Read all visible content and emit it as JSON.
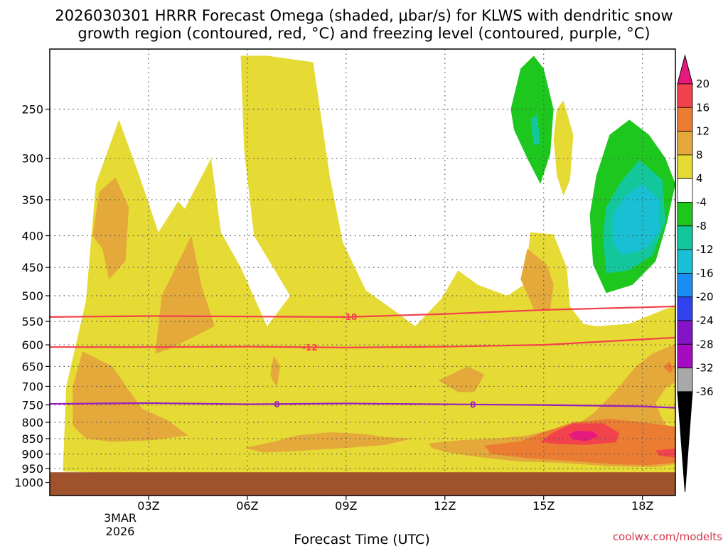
{
  "chart_data": {
    "type": "heatmap",
    "title_line1": "2026030301 HRRR Forecast Omega (shaded, μbar/s) for KLWS with dendritic snow",
    "title_line2": "growth region (contoured, red, °C) and freezing level (contoured, purple, °C)",
    "xlabel": "Forecast Time (UTC)",
    "ylabel": "",
    "x_ticks": [
      "03Z",
      "06Z",
      "09Z",
      "12Z",
      "15Z",
      "18Z"
    ],
    "x_tick_hours": [
      3,
      6,
      9,
      12,
      15,
      18
    ],
    "x_sublabel": [
      "3MAR",
      "2026"
    ],
    "xlim": [
      0,
      19
    ],
    "y_ticks": [
      250,
      300,
      350,
      400,
      450,
      500,
      550,
      600,
      650,
      700,
      750,
      800,
      850,
      900,
      950,
      1000
    ],
    "ylim": [
      1050,
      200
    ],
    "surface_pressure": 963,
    "colorbar": {
      "labels": [
        "20",
        "16",
        "12",
        "8",
        "4",
        "-4",
        "-8",
        "-12",
        "-16",
        "-20",
        "-24",
        "-28",
        "-32",
        "-36"
      ],
      "levels": [
        20,
        16,
        12,
        8,
        4,
        -4,
        -8,
        -12,
        -16,
        -20,
        -24,
        -28,
        -32,
        -36
      ],
      "colors": [
        "#e8197e",
        "#f2424b",
        "#eb7d33",
        "#e4a93a",
        "#e6da35",
        "#ffffff",
        "#1dc71d",
        "#13c79d",
        "#19bfd4",
        "#1a8ef0",
        "#3141ee",
        "#8313c5",
        "#a50cc0",
        "#a8a8a8",
        "#000000"
      ],
      "top_arrow_color": "#e8197e",
      "bottom_arrow_color": "#000000"
    },
    "contours": [
      {
        "name": "dendritic-top",
        "value": -18,
        "label": "-18",
        "color": "#f2424b",
        "points": [
          [
            0,
            541
          ],
          [
            3,
            539
          ],
          [
            6,
            540
          ],
          [
            9,
            541
          ],
          [
            12,
            535
          ],
          [
            15,
            527
          ],
          [
            18,
            522
          ],
          [
            19,
            520
          ]
        ],
        "label_hour": 9.1
      },
      {
        "name": "dendritic-bottom",
        "value": -12,
        "label": "-12",
        "color": "#f2424b",
        "points": [
          [
            0,
            605
          ],
          [
            3,
            605
          ],
          [
            6,
            604
          ],
          [
            9,
            606
          ],
          [
            12,
            604
          ],
          [
            15,
            600
          ],
          [
            18,
            588
          ],
          [
            19,
            584
          ]
        ],
        "label_hour": 7.9
      },
      {
        "name": "freezing-level",
        "value": 0,
        "label": "0",
        "color": "#9a1fc0",
        "points": [
          [
            0,
            747
          ],
          [
            3,
            745
          ],
          [
            6,
            748
          ],
          [
            9,
            746
          ],
          [
            12,
            748
          ],
          [
            15,
            750
          ],
          [
            18,
            754
          ],
          [
            19,
            758
          ]
        ],
        "label_hour": 6.9
      },
      {
        "name": "freezing-level",
        "value": 0,
        "label": "0",
        "color": "#9a1fc0",
        "points": [],
        "label_hour": 12.85
      }
    ],
    "regions": [
      {
        "level": 4,
        "color": "#e6da35",
        "name": "omega-4-main",
        "points": [
          [
            0.4,
            955
          ],
          [
            0.5,
            700
          ],
          [
            1.1,
            510
          ],
          [
            1.4,
            330
          ],
          [
            2.1,
            260
          ],
          [
            2.7,
            318
          ],
          [
            3.3,
            395
          ],
          [
            3.9,
            352
          ],
          [
            4.1,
            362
          ],
          [
            4.9,
            300
          ],
          [
            5.2,
            395
          ],
          [
            5.8,
            450
          ],
          [
            6.6,
            560
          ],
          [
            7.3,
            500
          ],
          [
            6.2,
            400
          ],
          [
            5.9,
            290
          ],
          [
            5.8,
            205
          ],
          [
            6.6,
            205
          ],
          [
            8.0,
            210
          ],
          [
            8.5,
            320
          ],
          [
            8.9,
            410
          ],
          [
            9.6,
            490
          ],
          [
            10.5,
            530
          ],
          [
            11.1,
            560
          ],
          [
            11.9,
            505
          ],
          [
            12.4,
            455
          ],
          [
            13.0,
            480
          ],
          [
            13.9,
            500
          ],
          [
            14.4,
            480
          ],
          [
            14.6,
            395
          ],
          [
            15.3,
            398
          ],
          [
            15.7,
            450
          ],
          [
            15.8,
            520
          ],
          [
            16.2,
            555
          ],
          [
            16.6,
            560
          ],
          [
            17.6,
            555
          ],
          [
            18.7,
            525
          ],
          [
            19,
            520
          ],
          [
            19,
            965
          ],
          [
            14,
            967
          ],
          [
            10,
            970
          ],
          [
            6,
            969
          ],
          [
            2,
            966
          ],
          [
            0.4,
            960
          ]
        ]
      },
      {
        "level": 4,
        "color": "#e6da35",
        "name": "omega-4-narrow",
        "points": [
          [
            15.4,
            250
          ],
          [
            15.6,
            242
          ],
          [
            15.9,
            275
          ],
          [
            15.8,
            325
          ],
          [
            15.6,
            345
          ],
          [
            15.4,
            320
          ],
          [
            15.3,
            280
          ]
        ]
      },
      {
        "level": 8,
        "color": "#e4a93a",
        "name": "omega-8-column",
        "points": [
          [
            1.3,
            400
          ],
          [
            1.5,
            340
          ],
          [
            2.0,
            322
          ],
          [
            2.4,
            360
          ],
          [
            2.3,
            440
          ],
          [
            1.8,
            470
          ],
          [
            1.6,
            420
          ]
        ]
      },
      {
        "level": 8,
        "color": "#e4a93a",
        "name": "omega-8-column",
        "points": [
          [
            3.2,
            620
          ],
          [
            3.4,
            500
          ],
          [
            4.3,
            400
          ],
          [
            4.6,
            480
          ],
          [
            5.0,
            560
          ],
          [
            4.3,
            585
          ],
          [
            3.6,
            610
          ]
        ]
      },
      {
        "level": 8,
        "color": "#e4a93a",
        "name": "omega-8-low",
        "points": [
          [
            0.7,
            700
          ],
          [
            1.0,
            615
          ],
          [
            1.9,
            650
          ],
          [
            2.4,
            710
          ],
          [
            2.8,
            760
          ],
          [
            3.6,
            795
          ],
          [
            4.2,
            840
          ],
          [
            3.1,
            855
          ],
          [
            1.9,
            860
          ],
          [
            1.1,
            850
          ],
          [
            0.7,
            810
          ]
        ]
      },
      {
        "level": 8,
        "color": "#e4a93a",
        "name": "omega-8-low",
        "points": [
          [
            5.9,
            880
          ],
          [
            6.8,
            860
          ],
          [
            7.5,
            840
          ],
          [
            8.5,
            830
          ],
          [
            9.5,
            835
          ],
          [
            10.2,
            845
          ],
          [
            11.0,
            850
          ],
          [
            10.2,
            870
          ],
          [
            9.0,
            880
          ],
          [
            7.5,
            890
          ],
          [
            6.5,
            895
          ]
        ]
      },
      {
        "level": 8,
        "color": "#e4a93a",
        "name": "omega-8-low",
        "points": [
          [
            6.7,
            670
          ],
          [
            6.8,
            625
          ],
          [
            7.0,
            650
          ],
          [
            6.9,
            700
          ],
          [
            6.8,
            690
          ]
        ]
      },
      {
        "level": 8,
        "color": "#e4a93a",
        "name": "omega-8-low",
        "points": [
          [
            11.8,
            685
          ],
          [
            12.7,
            650
          ],
          [
            13.2,
            670
          ],
          [
            12.9,
            715
          ],
          [
            12.4,
            715
          ]
        ]
      },
      {
        "level": 8,
        "color": "#e4a93a",
        "name": "omega-8-upper",
        "points": [
          [
            14.3,
            470
          ],
          [
            14.5,
            420
          ],
          [
            15.1,
            445
          ],
          [
            15.3,
            480
          ],
          [
            15.2,
            525
          ],
          [
            14.7,
            525
          ]
        ]
      },
      {
        "level": 8,
        "color": "#e4a93a",
        "name": "omega-8-right",
        "points": [
          [
            11.5,
            865
          ],
          [
            12.5,
            855
          ],
          [
            13.5,
            850
          ],
          [
            14.5,
            840
          ],
          [
            15.3,
            820
          ],
          [
            16.1,
            800
          ],
          [
            16.5,
            775
          ],
          [
            17.2,
            710
          ],
          [
            17.8,
            650
          ],
          [
            18.3,
            620
          ],
          [
            19,
            598
          ],
          [
            19,
            690
          ],
          [
            18.7,
            705
          ],
          [
            18.4,
            745
          ],
          [
            18.6,
            790
          ],
          [
            19,
            850
          ],
          [
            19,
            935
          ],
          [
            18.3,
            945
          ],
          [
            17.0,
            942
          ],
          [
            15.5,
            930
          ],
          [
            14.2,
            925
          ],
          [
            13.0,
            910
          ],
          [
            12.1,
            895
          ],
          [
            11.6,
            880
          ]
        ]
      },
      {
        "level": 12,
        "color": "#eb7d33",
        "name": "omega-12-right",
        "points": [
          [
            13.2,
            872
          ],
          [
            14.3,
            858
          ],
          [
            15.0,
            830
          ],
          [
            15.9,
            800
          ],
          [
            17.0,
            790
          ],
          [
            18.0,
            800
          ],
          [
            19,
            813
          ],
          [
            19,
            930
          ],
          [
            18.2,
            938
          ],
          [
            17.2,
            935
          ],
          [
            16.0,
            925
          ],
          [
            14.6,
            915
          ],
          [
            13.4,
            900
          ]
        ]
      },
      {
        "level": 12,
        "color": "#eb7d33",
        "name": "omega-12-small",
        "points": [
          [
            18.8,
            638
          ],
          [
            18.95,
            652
          ],
          [
            18.85,
            668
          ],
          [
            18.65,
            652
          ]
        ]
      },
      {
        "level": 16,
        "color": "#f2424b",
        "name": "omega-16-core",
        "points": [
          [
            14.9,
            860
          ],
          [
            15.3,
            830
          ],
          [
            15.9,
            803
          ],
          [
            16.8,
            803
          ],
          [
            17.3,
            832
          ],
          [
            17.2,
            862
          ],
          [
            16.3,
            870
          ],
          [
            15.4,
            867
          ]
        ]
      },
      {
        "level": 16,
        "color": "#f2424b",
        "name": "omega-16-edge",
        "points": [
          [
            18.4,
            888
          ],
          [
            19,
            882
          ],
          [
            19,
            912
          ],
          [
            18.5,
            905
          ]
        ]
      },
      {
        "level": 20,
        "color": "#e8197e",
        "name": "omega-20-peak",
        "points": [
          [
            15.75,
            838
          ],
          [
            16.0,
            825
          ],
          [
            16.5,
            828
          ],
          [
            16.65,
            842
          ],
          [
            16.3,
            858
          ],
          [
            15.9,
            853
          ]
        ]
      },
      {
        "level": -4,
        "color": "#ffffff",
        "name": "omega-neg4",
        "points": [
          [
            16.9,
            270
          ],
          [
            17.6,
            242
          ],
          [
            18.3,
            258
          ],
          [
            18.8,
            290
          ],
          [
            19,
            320
          ],
          [
            18.8,
            380
          ],
          [
            18.5,
            440
          ],
          [
            17.7,
            495
          ],
          [
            16.9,
            510
          ],
          [
            16.1,
            460
          ],
          [
            16.1,
            390
          ],
          [
            16.4,
            330
          ]
        ]
      },
      {
        "level": -8,
        "color": "#1dc71d",
        "name": "omega-neg8",
        "points": [
          [
            17.0,
            275
          ],
          [
            17.6,
            260
          ],
          [
            18.2,
            275
          ],
          [
            18.7,
            300
          ],
          [
            19,
            330
          ],
          [
            18.75,
            380
          ],
          [
            18.4,
            440
          ],
          [
            17.7,
            480
          ],
          [
            16.9,
            495
          ],
          [
            16.5,
            445
          ],
          [
            16.4,
            370
          ],
          [
            16.6,
            320
          ]
        ]
      },
      {
        "level": -8,
        "color": "#1dc71d",
        "name": "omega-neg8-upper",
        "points": [
          [
            14.0,
            250
          ],
          [
            14.3,
            215
          ],
          [
            14.7,
            205
          ],
          [
            15.0,
            215
          ],
          [
            15.3,
            250
          ],
          [
            15.2,
            295
          ],
          [
            14.9,
            330
          ],
          [
            14.5,
            300
          ],
          [
            14.1,
            270
          ]
        ]
      },
      {
        "level": -12,
        "color": "#13c79d",
        "name": "omega-neg12",
        "points": [
          [
            17.3,
            330
          ],
          [
            17.9,
            302
          ],
          [
            18.6,
            325
          ],
          [
            18.7,
            380
          ],
          [
            18.3,
            430
          ],
          [
            17.6,
            455
          ],
          [
            16.9,
            460
          ],
          [
            16.8,
            400
          ],
          [
            16.9,
            360
          ]
        ]
      },
      {
        "level": -12,
        "color": "#13c79d",
        "name": "omega-neg12-upper",
        "points": [
          [
            14.6,
            260
          ],
          [
            14.8,
            255
          ],
          [
            14.9,
            285
          ],
          [
            14.7,
            285
          ]
        ]
      },
      {
        "level": -16,
        "color": "#19bfd4",
        "name": "omega-neg16",
        "points": [
          [
            17.5,
            345
          ],
          [
            18.0,
            330
          ],
          [
            18.5,
            350
          ],
          [
            18.5,
            395
          ],
          [
            18.1,
            420
          ],
          [
            17.4,
            430
          ],
          [
            17.1,
            410
          ],
          [
            17.1,
            370
          ]
        ]
      }
    ],
    "credit": "coolwx.com/modelts"
  }
}
